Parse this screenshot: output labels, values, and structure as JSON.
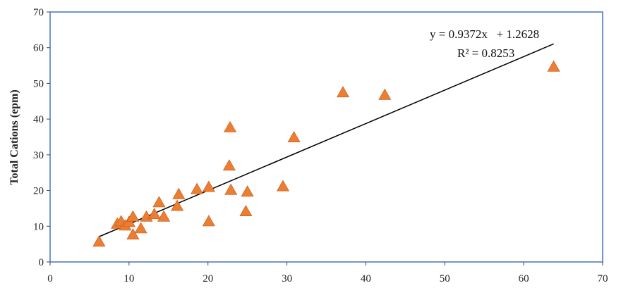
{
  "chart_data": {
    "type": "scatter",
    "title": "",
    "xlabel": "",
    "ylabel": "Total Cations (epm)",
    "xlim": [
      0,
      70
    ],
    "ylim": [
      0,
      70
    ],
    "xticks": [
      "0",
      "10",
      "20",
      "30",
      "40",
      "50",
      "60",
      "70"
    ],
    "yticks": [
      "0",
      "10",
      "20",
      "30",
      "40",
      "50",
      "60",
      "70"
    ],
    "grid": false,
    "legend": "none",
    "marker": "triangle",
    "colors": {
      "marker": "#ED7D31",
      "frame": "#4472C4",
      "trendline": "#000000"
    },
    "points": [
      {
        "x": 6.2,
        "y": 5.5
      },
      {
        "x": 8.5,
        "y": 10.5
      },
      {
        "x": 9.0,
        "y": 11.2
      },
      {
        "x": 9.5,
        "y": 10.0
      },
      {
        "x": 10.0,
        "y": 11.0
      },
      {
        "x": 10.5,
        "y": 12.5
      },
      {
        "x": 10.5,
        "y": 7.5
      },
      {
        "x": 11.5,
        "y": 9.2
      },
      {
        "x": 12.2,
        "y": 12.5
      },
      {
        "x": 13.2,
        "y": 13.2
      },
      {
        "x": 13.8,
        "y": 16.5
      },
      {
        "x": 14.4,
        "y": 12.5
      },
      {
        "x": 16.1,
        "y": 15.5
      },
      {
        "x": 16.3,
        "y": 18.8
      },
      {
        "x": 18.6,
        "y": 20.2
      },
      {
        "x": 20.1,
        "y": 20.8
      },
      {
        "x": 20.1,
        "y": 11.2
      },
      {
        "x": 22.7,
        "y": 26.8
      },
      {
        "x": 22.8,
        "y": 37.5
      },
      {
        "x": 22.9,
        "y": 20.0
      },
      {
        "x": 24.8,
        "y": 14.0
      },
      {
        "x": 25.0,
        "y": 19.5
      },
      {
        "x": 29.5,
        "y": 21.0
      },
      {
        "x": 30.9,
        "y": 34.7
      },
      {
        "x": 37.1,
        "y": 47.3
      },
      {
        "x": 42.4,
        "y": 46.6
      },
      {
        "x": 63.8,
        "y": 54.5
      }
    ],
    "trendline": {
      "slope": 0.9372,
      "intercept": 1.2628,
      "x_range": [
        6.2,
        63.8
      ],
      "equation_text": "y = 0.9372x   + 1.2628",
      "r2_text": "R² = 0.8253"
    }
  }
}
